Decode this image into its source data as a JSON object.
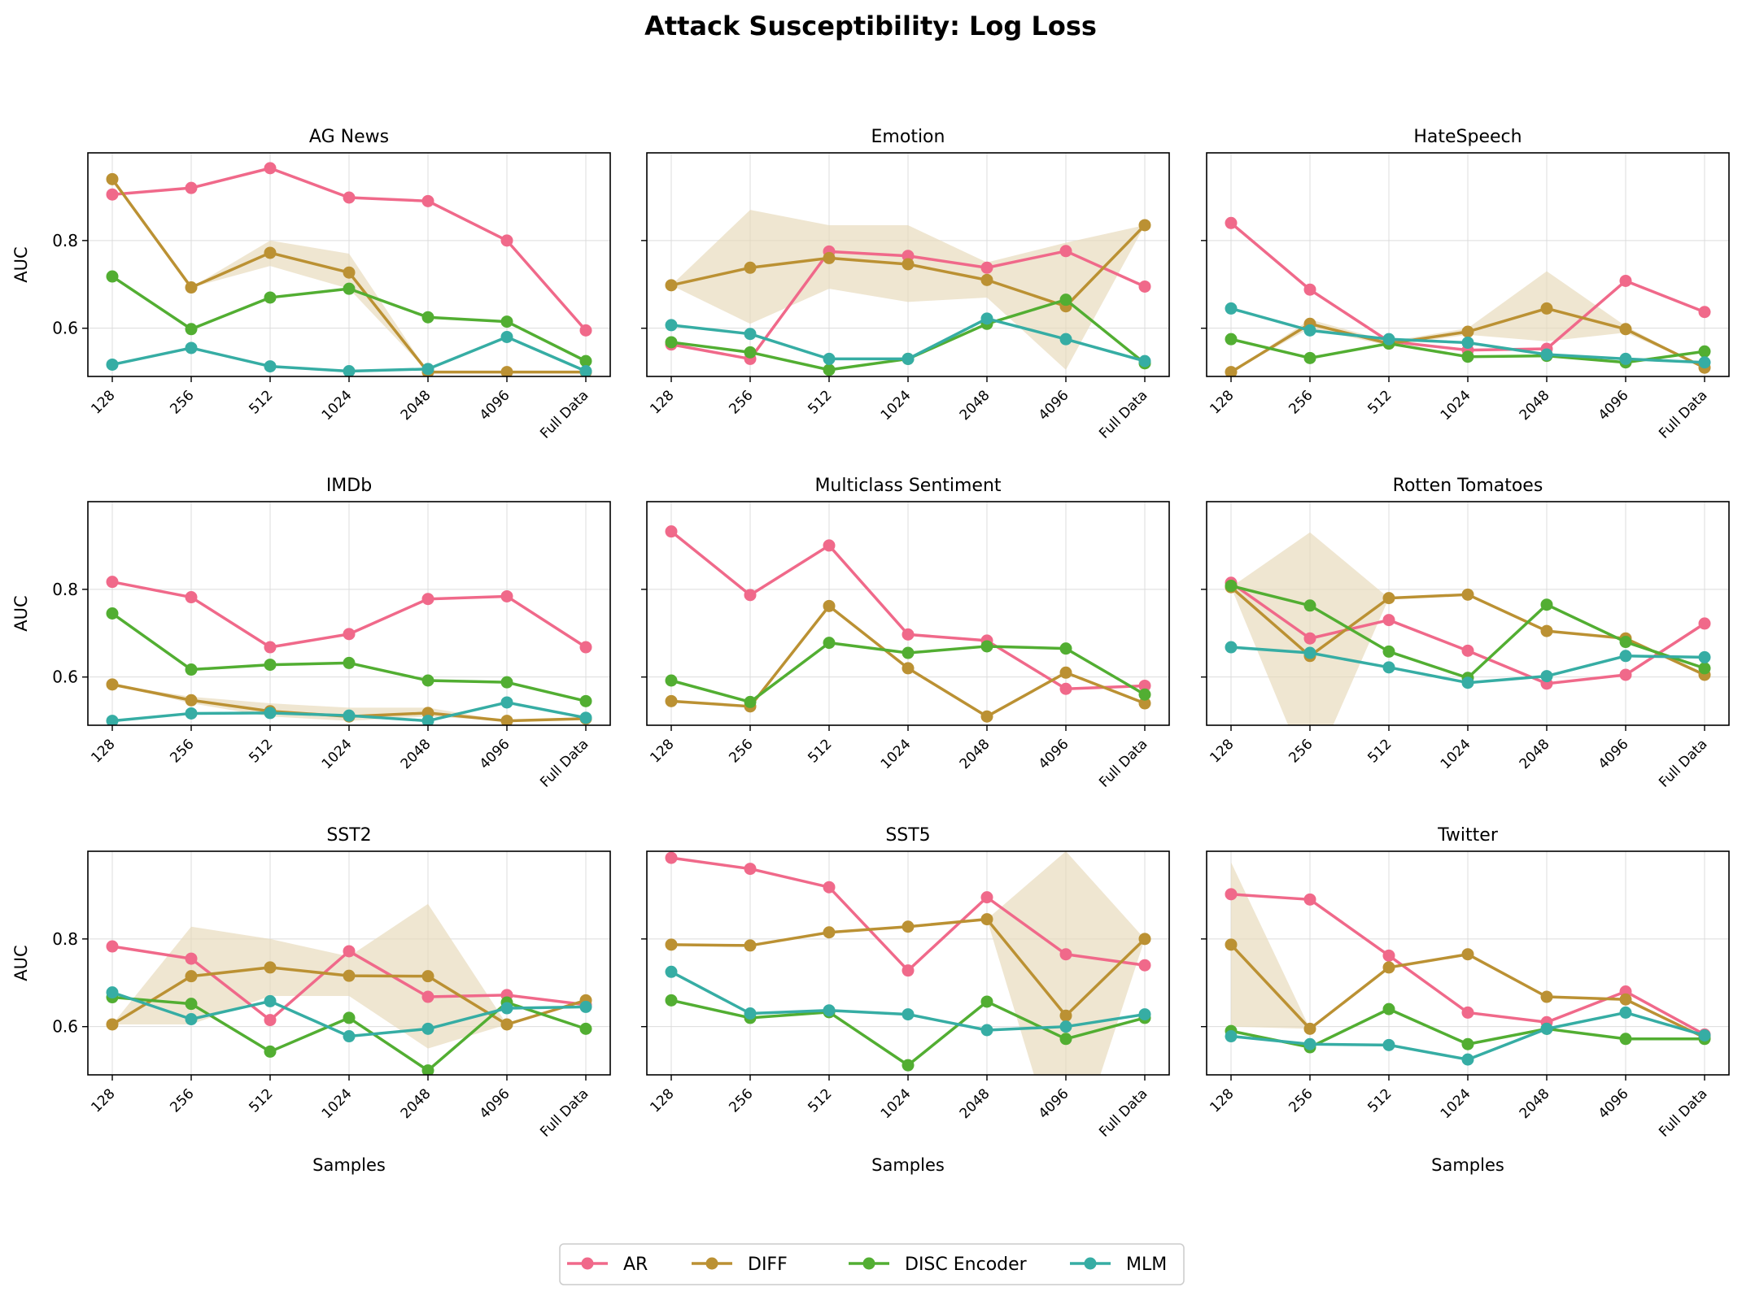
{
  "figure_title": "Attack Susceptibility: Log Loss",
  "colors": {
    "AR": "#f0698a",
    "DIFF": "#bb9133",
    "DISC Encoder": "#52ae32",
    "MLM": "#36ada4",
    "band": "#e6d9b8",
    "grid": "#dcdcdc"
  },
  "chart_data": [
    {
      "type": "line",
      "title": "AG News",
      "categories": [
        "128",
        "256",
        "512",
        "1024",
        "2048",
        "4096",
        "Full Data"
      ],
      "xlabel": "",
      "ylabel": "AUC",
      "ylim": [
        0.49,
        1.0
      ],
      "yticks": [
        "0.6",
        "0.8"
      ],
      "series": [
        {
          "name": "AR",
          "values": [
            0.905,
            0.92,
            0.965,
            0.898,
            0.89,
            0.8,
            0.595
          ]
        },
        {
          "name": "DIFF",
          "values": [
            0.94,
            0.693,
            0.772,
            0.727,
            0.5,
            0.5,
            0.5
          ],
          "band_low": [
            0.94,
            0.693,
            0.742,
            0.69,
            0.5,
            0.5,
            0.5
          ],
          "band_high": [
            0.94,
            0.693,
            0.8,
            0.77,
            0.5,
            0.5,
            0.5
          ]
        },
        {
          "name": "DISC Encoder",
          "values": [
            0.718,
            0.598,
            0.67,
            0.69,
            0.625,
            0.615,
            0.525
          ]
        },
        {
          "name": "MLM",
          "values": [
            0.517,
            0.555,
            0.513,
            0.502,
            0.507,
            0.58,
            0.502
          ]
        }
      ]
    },
    {
      "type": "line",
      "title": "Emotion",
      "categories": [
        "128",
        "256",
        "512",
        "1024",
        "2048",
        "4096",
        "Full Data"
      ],
      "xlabel": "",
      "ylabel": "",
      "ylim": [
        0.49,
        1.0
      ],
      "yticks": [
        "0.6",
        "0.8"
      ],
      "series": [
        {
          "name": "AR",
          "values": [
            0.563,
            0.53,
            0.775,
            0.765,
            0.738,
            0.776,
            0.695
          ]
        },
        {
          "name": "DIFF",
          "values": [
            0.698,
            0.738,
            0.76,
            0.746,
            0.71,
            0.65,
            0.835
          ],
          "band_low": [
            0.698,
            0.61,
            0.69,
            0.66,
            0.67,
            0.505,
            0.835
          ],
          "band_high": [
            0.698,
            0.87,
            0.835,
            0.835,
            0.75,
            0.795,
            0.835
          ]
        },
        {
          "name": "DISC Encoder",
          "values": [
            0.568,
            0.545,
            0.505,
            0.53,
            0.61,
            0.665,
            0.52
          ]
        },
        {
          "name": "MLM",
          "values": [
            0.607,
            0.587,
            0.53,
            0.53,
            0.622,
            0.575,
            0.525
          ]
        }
      ]
    },
    {
      "type": "line",
      "title": "HateSpeech",
      "categories": [
        "128",
        "256",
        "512",
        "1024",
        "2048",
        "4096",
        "Full Data"
      ],
      "xlabel": "",
      "ylabel": "",
      "ylim": [
        0.49,
        1.0
      ],
      "yticks": [
        "0.6",
        "0.8"
      ],
      "series": [
        {
          "name": "AR",
          "values": [
            0.84,
            0.688,
            0.57,
            0.55,
            0.553,
            0.708,
            0.637
          ]
        },
        {
          "name": "DIFF",
          "values": [
            0.5,
            0.61,
            0.565,
            0.592,
            0.645,
            0.598,
            0.51
          ],
          "band_low": [
            0.5,
            0.6,
            0.56,
            0.585,
            0.57,
            0.59,
            0.51
          ],
          "band_high": [
            0.5,
            0.62,
            0.57,
            0.6,
            0.73,
            0.605,
            0.51
          ]
        },
        {
          "name": "DISC Encoder",
          "values": [
            0.575,
            0.532,
            0.565,
            0.535,
            0.537,
            0.522,
            0.547
          ]
        },
        {
          "name": "MLM",
          "values": [
            0.645,
            0.595,
            0.575,
            0.567,
            0.54,
            0.53,
            0.522
          ]
        }
      ]
    },
    {
      "type": "line",
      "title": "IMDb",
      "categories": [
        "128",
        "256",
        "512",
        "1024",
        "2048",
        "4096",
        "Full Data"
      ],
      "xlabel": "",
      "ylabel": "AUC",
      "ylim": [
        0.49,
        1.0
      ],
      "yticks": [
        "0.6",
        "0.8"
      ],
      "series": [
        {
          "name": "AR",
          "values": [
            0.817,
            0.782,
            0.668,
            0.698,
            0.778,
            0.784,
            0.668
          ]
        },
        {
          "name": "DIFF",
          "values": [
            0.583,
            0.547,
            0.522,
            0.51,
            0.518,
            0.5,
            0.505
          ],
          "band_low": [
            0.583,
            0.54,
            0.51,
            0.5,
            0.51,
            0.5,
            0.505
          ],
          "band_high": [
            0.583,
            0.555,
            0.54,
            0.53,
            0.53,
            0.5,
            0.505
          ]
        },
        {
          "name": "DISC Encoder",
          "values": [
            0.745,
            0.617,
            0.628,
            0.632,
            0.592,
            0.588,
            0.545
          ]
        },
        {
          "name": "MLM",
          "values": [
            0.5,
            0.517,
            0.518,
            0.512,
            0.5,
            0.542,
            0.507
          ]
        }
      ]
    },
    {
      "type": "line",
      "title": "Multiclass Sentiment",
      "categories": [
        "128",
        "256",
        "512",
        "1024",
        "2048",
        "4096",
        "Full Data"
      ],
      "xlabel": "",
      "ylabel": "",
      "ylim": [
        0.49,
        1.0
      ],
      "yticks": [
        "0.6",
        "0.8"
      ],
      "series": [
        {
          "name": "AR",
          "values": [
            0.932,
            0.787,
            0.9,
            0.697,
            0.683,
            0.573,
            0.58
          ]
        },
        {
          "name": "DIFF",
          "values": [
            0.545,
            0.533,
            0.762,
            0.62,
            0.51,
            0.61,
            0.54
          ]
        },
        {
          "name": "DISC Encoder",
          "values": [
            0.592,
            0.543,
            0.678,
            0.655,
            0.67,
            0.665,
            0.56
          ]
        }
      ]
    },
    {
      "type": "line",
      "title": "Rotten Tomatoes",
      "categories": [
        "128",
        "256",
        "512",
        "1024",
        "2048",
        "4096",
        "Full Data"
      ],
      "xlabel": "",
      "ylabel": "",
      "ylim": [
        0.49,
        1.0
      ],
      "yticks": [
        "0.6",
        "0.8"
      ],
      "series": [
        {
          "name": "AR",
          "values": [
            0.815,
            0.688,
            0.73,
            0.66,
            0.585,
            0.605,
            0.722
          ]
        },
        {
          "name": "DIFF",
          "values": [
            0.805,
            0.648,
            0.78,
            0.788,
            0.705,
            0.688,
            0.605
          ],
          "band_low": [
            0.805,
            0.37,
            0.78,
            0.788,
            0.705,
            0.688,
            0.605
          ],
          "band_high": [
            0.805,
            0.93,
            0.78,
            0.788,
            0.705,
            0.688,
            0.605
          ]
        },
        {
          "name": "DISC Encoder",
          "values": [
            0.808,
            0.763,
            0.658,
            0.598,
            0.765,
            0.68,
            0.62
          ]
        },
        {
          "name": "MLM",
          "values": [
            0.668,
            0.655,
            0.622,
            0.587,
            0.602,
            0.648,
            0.645
          ]
        }
      ]
    },
    {
      "type": "line",
      "title": "SST2",
      "categories": [
        "128",
        "256",
        "512",
        "1024",
        "2048",
        "4096",
        "Full Data"
      ],
      "xlabel": "Samples",
      "ylabel": "AUC",
      "ylim": [
        0.49,
        1.0
      ],
      "yticks": [
        "0.6",
        "0.8"
      ],
      "series": [
        {
          "name": "AR",
          "values": [
            0.783,
            0.755,
            0.615,
            0.772,
            0.668,
            0.672,
            0.65
          ]
        },
        {
          "name": "DIFF",
          "values": [
            0.605,
            0.715,
            0.735,
            0.716,
            0.715,
            0.605,
            0.66
          ],
          "band_low": [
            0.605,
            0.605,
            0.67,
            0.67,
            0.55,
            0.605,
            0.66
          ],
          "band_high": [
            0.605,
            0.828,
            0.8,
            0.76,
            0.88,
            0.605,
            0.66
          ]
        },
        {
          "name": "DISC Encoder",
          "values": [
            0.667,
            0.652,
            0.543,
            0.62,
            0.5,
            0.655,
            0.595
          ]
        },
        {
          "name": "MLM",
          "values": [
            0.678,
            0.617,
            0.658,
            0.578,
            0.595,
            0.642,
            0.645
          ]
        }
      ]
    },
    {
      "type": "line",
      "title": "SST5",
      "categories": [
        "128",
        "256",
        "512",
        "1024",
        "2048",
        "4096",
        "Full Data"
      ],
      "xlabel": "Samples",
      "ylabel": "",
      "ylim": [
        0.49,
        1.0
      ],
      "yticks": [
        "0.6",
        "0.8"
      ],
      "series": [
        {
          "name": "AR",
          "values": [
            0.985,
            0.96,
            0.918,
            0.728,
            0.895,
            0.765,
            0.74
          ]
        },
        {
          "name": "DIFF",
          "values": [
            0.787,
            0.785,
            0.815,
            0.828,
            0.845,
            0.625,
            0.8
          ],
          "band_low": [
            0.787,
            0.785,
            0.815,
            0.828,
            0.845,
            0.25,
            0.8
          ],
          "band_high": [
            0.787,
            0.785,
            0.815,
            0.828,
            0.845,
            1.0,
            0.8
          ]
        },
        {
          "name": "DISC Encoder",
          "values": [
            0.66,
            0.62,
            0.633,
            0.512,
            0.657,
            0.572,
            0.62
          ]
        },
        {
          "name": "MLM",
          "values": [
            0.725,
            0.63,
            0.637,
            0.628,
            0.592,
            0.6,
            0.628
          ]
        }
      ]
    },
    {
      "type": "line",
      "title": "Twitter",
      "categories": [
        "128",
        "256",
        "512",
        "1024",
        "2048",
        "4096",
        "Full Data"
      ],
      "xlabel": "Samples",
      "ylabel": "",
      "ylim": [
        0.49,
        1.0
      ],
      "yticks": [
        "0.6",
        "0.8"
      ],
      "series": [
        {
          "name": "AR",
          "values": [
            0.902,
            0.89,
            0.762,
            0.632,
            0.61,
            0.68,
            0.582
          ]
        },
        {
          "name": "DIFF",
          "values": [
            0.787,
            0.595,
            0.735,
            0.765,
            0.668,
            0.662,
            0.575
          ],
          "band_low": [
            0.6,
            0.595,
            0.735,
            0.765,
            0.668,
            0.662,
            0.575
          ],
          "band_high": [
            0.975,
            0.595,
            0.735,
            0.765,
            0.668,
            0.662,
            0.575
          ]
        },
        {
          "name": "DISC Encoder",
          "values": [
            0.59,
            0.553,
            0.64,
            0.56,
            0.595,
            0.572,
            0.572
          ]
        },
        {
          "name": "MLM",
          "values": [
            0.578,
            0.56,
            0.558,
            0.525,
            0.595,
            0.632,
            0.58
          ]
        }
      ]
    }
  ],
  "legend": {
    "items": [
      "AR",
      "DIFF",
      "DISC Encoder",
      "MLM"
    ]
  }
}
